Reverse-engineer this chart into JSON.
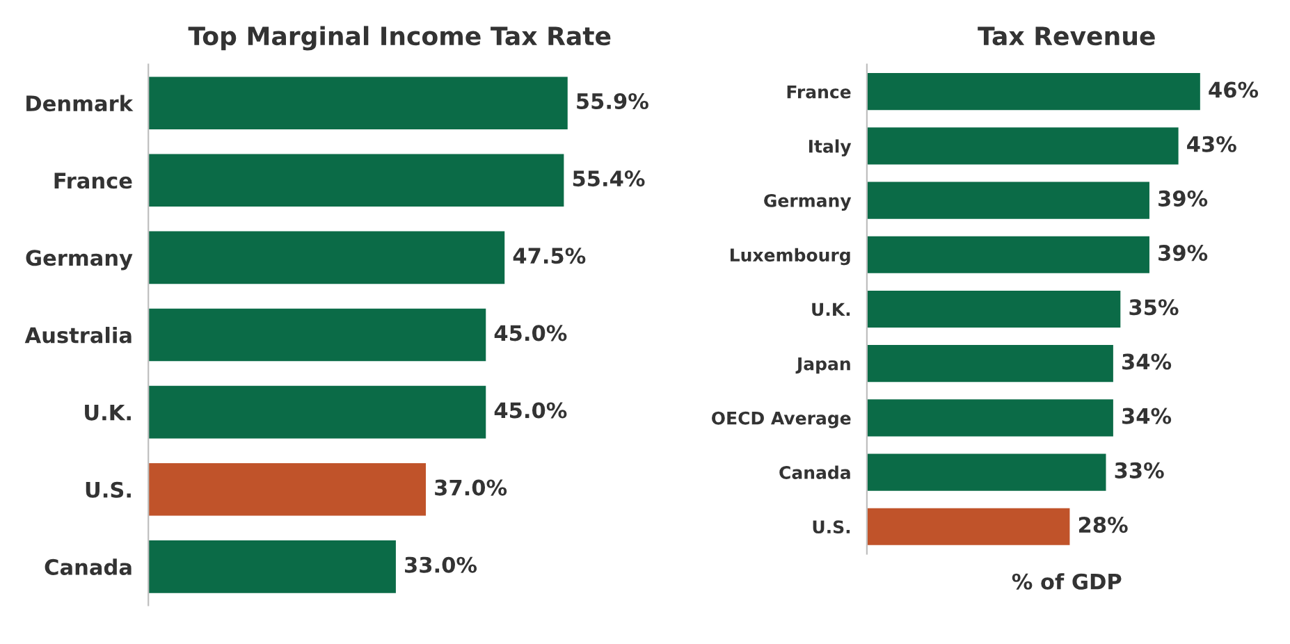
{
  "chart_data": [
    {
      "type": "bar",
      "orientation": "horizontal",
      "title": "Top Marginal Income Tax Rate",
      "categories": [
        "Denmark",
        "France",
        "Germany",
        "Australia",
        "U.K.",
        "U.S.",
        "Canada"
      ],
      "values": [
        55.9,
        55.4,
        47.5,
        45.0,
        45.0,
        37.0,
        33.0
      ],
      "value_labels": [
        "55.9%",
        "55.4%",
        "47.5%",
        "45.0%",
        "45.0%",
        "37.0%",
        "33.0%"
      ],
      "colors": [
        "#0b6b47",
        "#0b6b47",
        "#0b6b47",
        "#0b6b47",
        "#0b6b47",
        "#c0532a",
        "#0b6b47"
      ],
      "tick_labels": "y",
      "grid": false,
      "legend": false
    },
    {
      "type": "bar",
      "orientation": "horizontal",
      "title": "Tax Revenue",
      "xlabel": "% of GDP",
      "categories": [
        "France",
        "Italy",
        "Germany",
        "Luxembourg",
        "U.K.",
        "Japan",
        "OECD Average",
        "Canada",
        "U.S."
      ],
      "values": [
        46,
        43,
        39,
        39,
        35,
        34,
        34,
        33,
        28
      ],
      "value_labels": [
        "46%",
        "43%",
        "39%",
        "39%",
        "35%",
        "34%",
        "34%",
        "33%",
        "28%"
      ],
      "colors": [
        "#0b6b47",
        "#0b6b47",
        "#0b6b47",
        "#0b6b47",
        "#0b6b47",
        "#0b6b47",
        "#0b6b47",
        "#0b6b47",
        "#c0532a"
      ],
      "tick_labels": "y",
      "grid": false,
      "legend": false
    }
  ]
}
